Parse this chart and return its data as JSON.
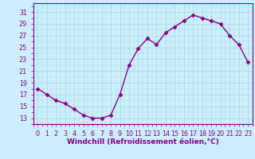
{
  "x": [
    0,
    1,
    2,
    3,
    4,
    5,
    6,
    7,
    8,
    9,
    10,
    11,
    12,
    13,
    14,
    15,
    16,
    17,
    18,
    19,
    20,
    21,
    22,
    23
  ],
  "y": [
    18.0,
    17.0,
    16.0,
    15.5,
    14.5,
    13.5,
    13.0,
    13.0,
    13.5,
    17.0,
    22.0,
    24.8,
    26.5,
    25.5,
    27.5,
    28.5,
    29.5,
    30.5,
    30.0,
    29.5,
    29.0,
    27.0,
    25.5,
    22.5
  ],
  "line_color": "#880088",
  "marker": "D",
  "marker_size": 2.5,
  "bg_color": "#cceeff",
  "grid_color": "#aadddd",
  "xlabel": "Windchill (Refroidissement éolien,°C)",
  "xlabel_fontsize": 6.5,
  "ytick_labels": [
    "13",
    "15",
    "17",
    "19",
    "21",
    "23",
    "25",
    "27",
    "29",
    "31"
  ],
  "ytick_values": [
    13,
    15,
    17,
    19,
    21,
    23,
    25,
    27,
    29,
    31
  ],
  "xlim": [
    -0.5,
    23.5
  ],
  "ylim": [
    12.0,
    32.5
  ],
  "xtick_labels": [
    "0",
    "1",
    "2",
    "3",
    "4",
    "5",
    "6",
    "7",
    "8",
    "9",
    "10",
    "11",
    "12",
    "13",
    "14",
    "15",
    "16",
    "17",
    "18",
    "19",
    "20",
    "21",
    "22",
    "23"
  ],
  "tick_color": "#880088",
  "tick_fontsize": 5.8,
  "line_width": 1.0
}
